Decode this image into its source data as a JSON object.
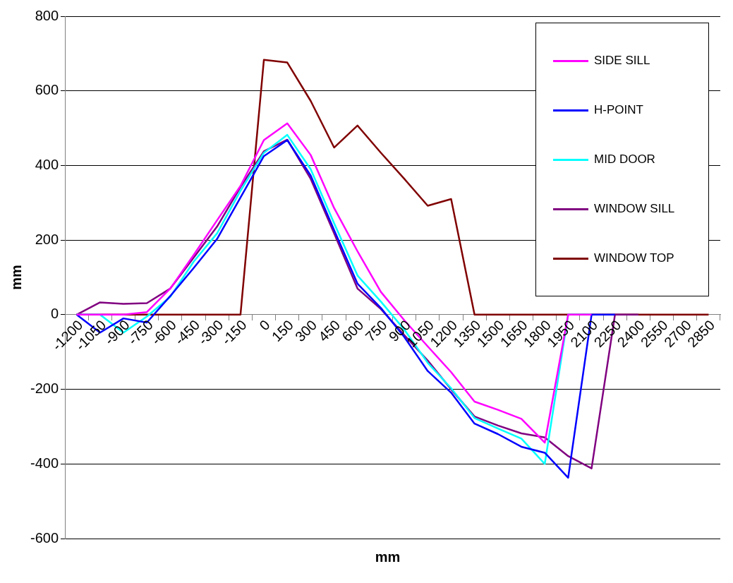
{
  "chart_data": {
    "type": "line",
    "xlabel": "mm",
    "ylabel": "mm",
    "categories": [
      "-1200",
      "-1050",
      "-900",
      "-750",
      "-600",
      "-450",
      "-300",
      "-150",
      "0",
      "150",
      "300",
      "450",
      "600",
      "750",
      "900",
      "1050",
      "1200",
      "1350",
      "1500",
      "1650",
      "1800",
      "1950",
      "2100",
      "2250",
      "2400",
      "2550",
      "2700",
      "2850"
    ],
    "series": [
      {
        "name": "SIDE SILL",
        "color": "#ff00ff",
        "values": [
          0,
          0,
          0,
          7,
          70,
          160,
          253,
          345,
          468,
          513,
          428,
          286,
          170,
          61,
          -15,
          -85,
          -154,
          -233,
          -255,
          -279,
          -343,
          0,
          0,
          null,
          null,
          null,
          null,
          null
        ]
      },
      {
        "name": "H-POINT",
        "color": "#0000ff",
        "values": [
          0,
          -48,
          -10,
          -21,
          50,
          125,
          203,
          314,
          425,
          468,
          373,
          227,
          83,
          18,
          -60,
          -151,
          -209,
          -292,
          -320,
          -354,
          -370,
          -437,
          0,
          0,
          null,
          null,
          null,
          null
        ]
      },
      {
        "name": "MID DOOR",
        "color": "#00ffff",
        "values": [
          0,
          0,
          -48,
          -5,
          48,
          142,
          218,
          332,
          434,
          482,
          390,
          245,
          105,
          35,
          -40,
          -129,
          -197,
          -277,
          -305,
          -332,
          -400,
          0,
          0,
          null,
          null,
          null,
          null,
          null
        ]
      },
      {
        "name": "WINDOW SILL",
        "color": "#800080",
        "values": [
          0,
          33,
          29,
          31,
          70,
          153,
          236,
          342,
          438,
          469,
          364,
          218,
          70,
          15,
          -55,
          -123,
          -200,
          -273,
          -297,
          -318,
          -329,
          -379,
          -412,
          0,
          0,
          null,
          null,
          null
        ]
      },
      {
        "name": "WINDOW TOP",
        "color": "#800000",
        "values": [
          0,
          0,
          0,
          0,
          0,
          0,
          0,
          0,
          683,
          676,
          573,
          448,
          507,
          434,
          364,
          292,
          310,
          0,
          0,
          0,
          0,
          0,
          0,
          0,
          0,
          0,
          0,
          0
        ]
      }
    ],
    "ylim": [
      -600,
      800
    ],
    "yticks": [
      -600,
      -400,
      -200,
      0,
      200,
      400,
      600,
      800
    ],
    "grid": "y",
    "legend": "top right",
    "marker": "none",
    "line_style": "solid"
  }
}
